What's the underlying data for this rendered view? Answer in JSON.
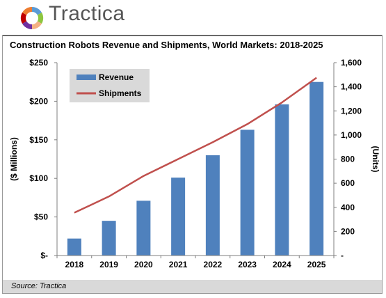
{
  "brand": {
    "name": "Tractica"
  },
  "chart_data": {
    "type": "bar",
    "title": "Construction Robots Revenue and Shipments, World Markets: 2018-2025",
    "categories": [
      "2018",
      "2019",
      "2020",
      "2021",
      "2022",
      "2023",
      "2024",
      "2025"
    ],
    "series": [
      {
        "name": "Revenue",
        "type": "bar",
        "axis": "left",
        "color": "#4f81bd",
        "values": [
          22,
          45,
          71,
          101,
          130,
          163,
          196,
          225
        ]
      },
      {
        "name": "Shipments",
        "type": "line",
        "axis": "right",
        "color": "#c0504d",
        "values": [
          355,
          490,
          660,
          800,
          940,
          1090,
          1270,
          1475
        ]
      }
    ],
    "left_axis": {
      "label": "($ Millions)",
      "min": 0,
      "max": 250,
      "step": 50,
      "tick_labels": [
        "$-",
        "$50",
        "$100",
        "$150",
        "$200",
        "$250"
      ]
    },
    "right_axis": {
      "label": "(Units)",
      "min": 0,
      "max": 1600,
      "step": 200,
      "tick_labels": [
        "-",
        "200",
        "400",
        "600",
        "800",
        "1,000",
        "1,200",
        "1,400",
        "1,600"
      ]
    },
    "legend": {
      "placement": "top-left",
      "background": "#d9d9d9"
    },
    "grid": false
  },
  "source": "Source: Tractica"
}
